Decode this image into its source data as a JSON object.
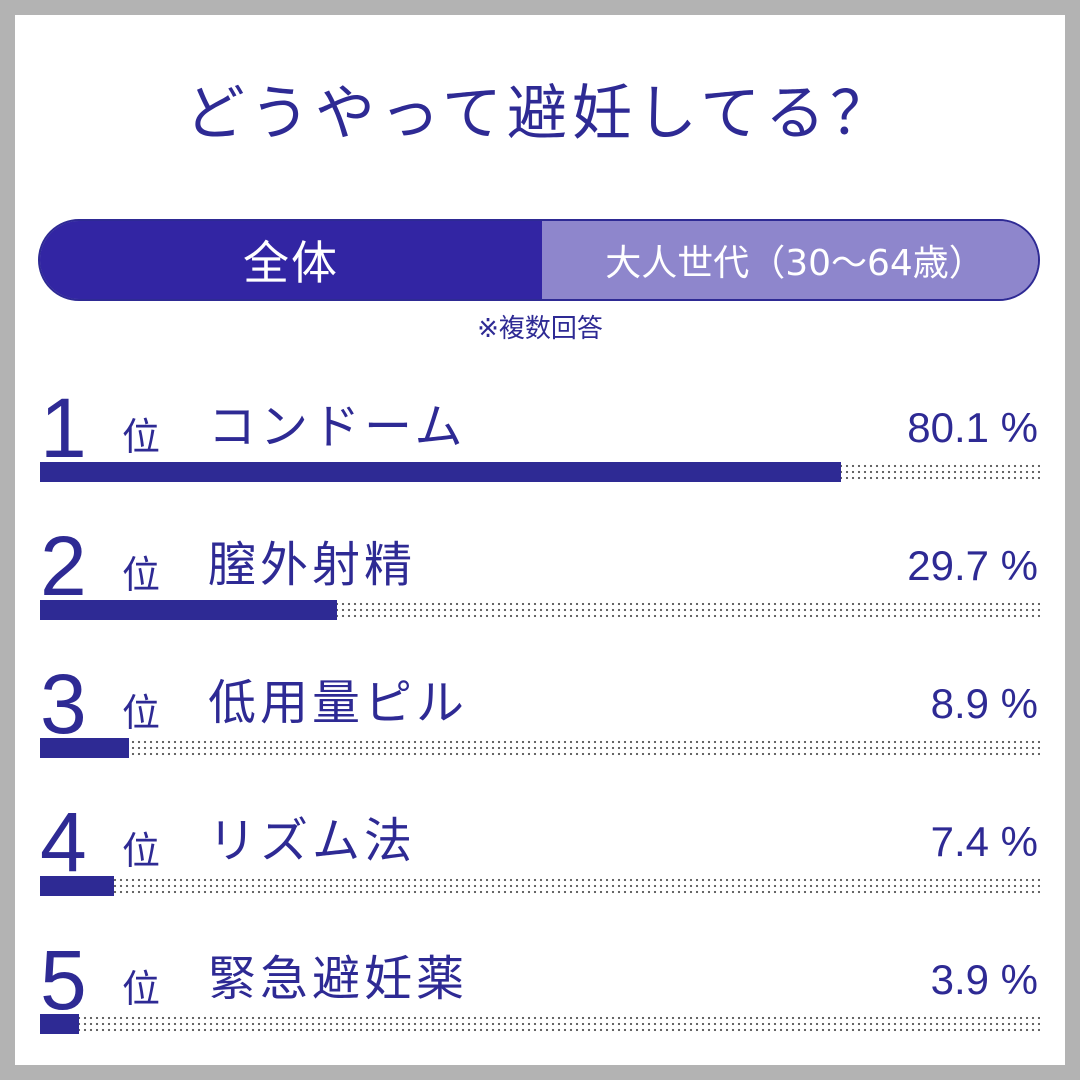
{
  "title": "どうやって避妊してる？",
  "tabs": [
    {
      "label": "全体",
      "active": true
    },
    {
      "label": "大人世代（30〜64歳）",
      "active": false
    }
  ],
  "note": "※複数回答",
  "colors": {
    "accent": "#2e2a94",
    "tab_active": "#3225a3",
    "tab_inactive": "#8e86cc",
    "background": "#b3b3b3"
  },
  "chart_data": {
    "type": "bar",
    "orientation": "horizontal",
    "rank_unit": "位",
    "value_unit": "%",
    "xlim": [
      0,
      100
    ],
    "categories": [
      "コンドーム",
      "膣外射精",
      "低用量ピル",
      "リズム法",
      "緊急避妊薬"
    ],
    "ranks": [
      "1",
      "2",
      "3",
      "4",
      "5"
    ],
    "values": [
      80.1,
      29.7,
      8.9,
      7.4,
      3.9
    ],
    "value_labels": [
      "80.1 %",
      "29.7 %",
      "8.9 %",
      "7.4 %",
      "3.9 %"
    ]
  }
}
